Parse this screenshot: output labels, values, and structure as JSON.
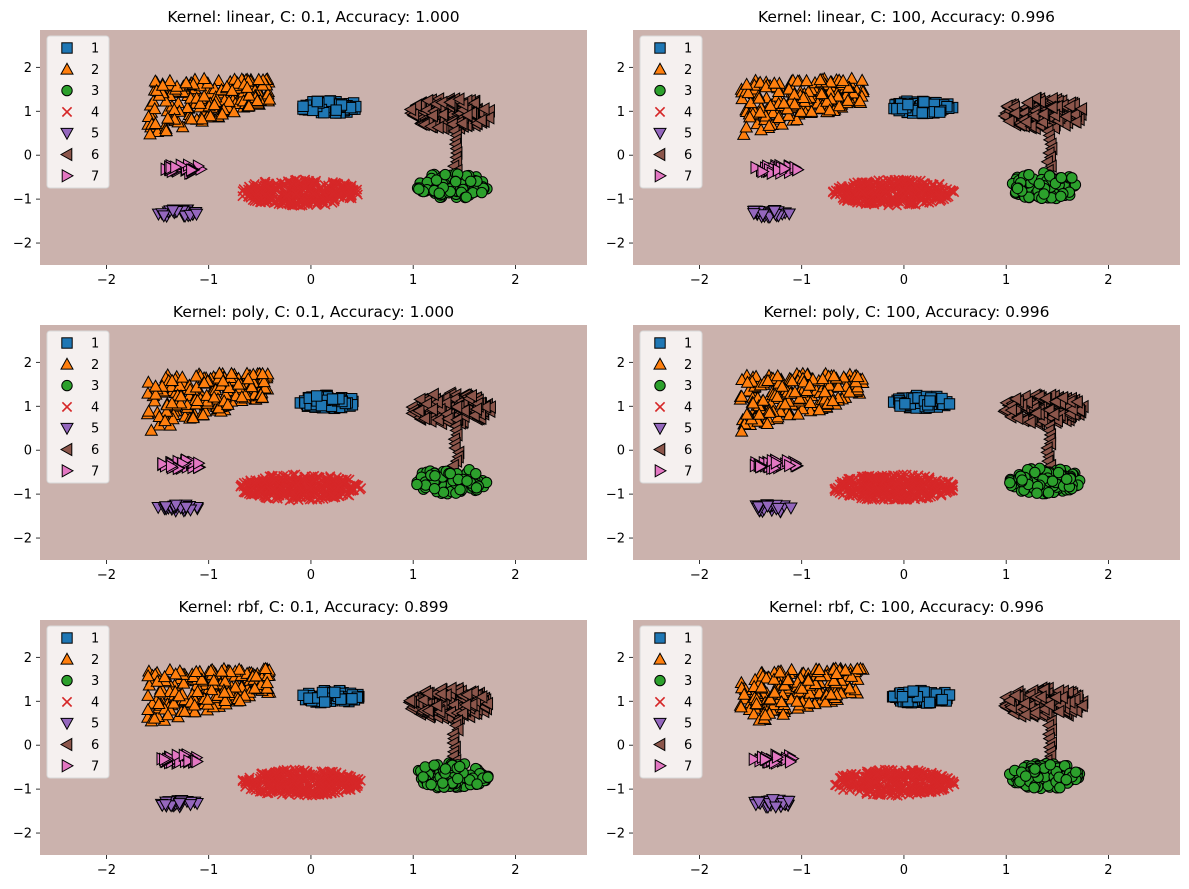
{
  "figure": {
    "background": "#ffffff",
    "region_color": "#cbb2ad"
  },
  "legend": {
    "placement": "upper-left",
    "items": [
      {
        "label": "1",
        "marker": "square",
        "color": "#1f77b4"
      },
      {
        "label": "2",
        "marker": "triangle-up",
        "color": "#ff7f0e"
      },
      {
        "label": "3",
        "marker": "circle",
        "color": "#2ca02c"
      },
      {
        "label": "4",
        "marker": "x",
        "color": "#d62728"
      },
      {
        "label": "5",
        "marker": "triangle-down",
        "color": "#9467bd"
      },
      {
        "label": "6",
        "marker": "triangle-left",
        "color": "#8c564b"
      },
      {
        "label": "7",
        "marker": "triangle-right",
        "color": "#e377c2"
      }
    ]
  },
  "chart_data": [
    {
      "type": "scatter",
      "title": "Kernel:  linear, C: 0.1, Accuracy: 1.000",
      "xlim": [
        -2.65,
        2.7
      ],
      "ylim": [
        -2.5,
        2.85
      ],
      "xticks": [
        -2,
        -1,
        0,
        1,
        2
      ],
      "yticks": [
        -2,
        -1,
        0,
        1,
        2
      ],
      "clusters": [
        {
          "class": "1",
          "shape": "ellipse",
          "center": [
            0.18,
            1.1
          ],
          "radii": [
            0.3,
            0.15
          ],
          "n": 70
        },
        {
          "class": "2",
          "shape": "crescent",
          "x_range": [
            -1.6,
            -0.4
          ],
          "y_range": [
            0.35,
            1.75
          ],
          "n": 200
        },
        {
          "class": "3",
          "shape": "ellipse",
          "center": [
            1.38,
            -0.7
          ],
          "radii": [
            0.36,
            0.3
          ],
          "n": 110
        },
        {
          "class": "4",
          "shape": "ellipse",
          "center": [
            -0.1,
            -0.85
          ],
          "radii": [
            0.6,
            0.3
          ],
          "n": 320
        },
        {
          "class": "5",
          "shape": "ellipse",
          "center": [
            -1.3,
            -1.32
          ],
          "radii": [
            0.2,
            0.09
          ],
          "n": 28
        },
        {
          "class": "6",
          "shape": "ellipse",
          "center": [
            1.36,
            0.95
          ],
          "radii": [
            0.4,
            0.35
          ],
          "n": 160
        },
        {
          "class": "7",
          "shape": "ellipse",
          "center": [
            -1.25,
            -0.32
          ],
          "radii": [
            0.22,
            0.1
          ],
          "n": 30
        }
      ]
    },
    {
      "type": "scatter",
      "title": "Kernel:  linear, C: 100, Accuracy: 0.996",
      "xlim": [
        -2.65,
        2.7
      ],
      "ylim": [
        -2.5,
        2.85
      ],
      "xticks": [
        -2,
        -1,
        0,
        1,
        2
      ],
      "yticks": [
        -2,
        -1,
        0,
        1,
        2
      ],
      "clusters": [
        {
          "class": "1",
          "shape": "ellipse",
          "center": [
            0.18,
            1.1
          ],
          "radii": [
            0.3,
            0.15
          ],
          "n": 70
        },
        {
          "class": "2",
          "shape": "crescent",
          "x_range": [
            -1.6,
            -0.4
          ],
          "y_range": [
            0.35,
            1.75
          ],
          "n": 200
        },
        {
          "class": "3",
          "shape": "ellipse",
          "center": [
            1.38,
            -0.7
          ],
          "radii": [
            0.36,
            0.3
          ],
          "n": 110
        },
        {
          "class": "4",
          "shape": "ellipse",
          "center": [
            -0.1,
            -0.85
          ],
          "radii": [
            0.6,
            0.3
          ],
          "n": 320
        },
        {
          "class": "5",
          "shape": "ellipse",
          "center": [
            -1.3,
            -1.32
          ],
          "radii": [
            0.2,
            0.09
          ],
          "n": 28
        },
        {
          "class": "6",
          "shape": "ellipse",
          "center": [
            1.36,
            0.95
          ],
          "radii": [
            0.4,
            0.35
          ],
          "n": 160
        },
        {
          "class": "7",
          "shape": "ellipse",
          "center": [
            -1.25,
            -0.32
          ],
          "radii": [
            0.22,
            0.1
          ],
          "n": 30
        }
      ]
    },
    {
      "type": "scatter",
      "title": "Kernel:  poly, C: 0.1, Accuracy: 1.000",
      "xlim": [
        -2.65,
        2.7
      ],
      "ylim": [
        -2.5,
        2.85
      ],
      "xticks": [
        -2,
        -1,
        0,
        1,
        2
      ],
      "yticks": [
        -2,
        -1,
        0,
        1,
        2
      ],
      "clusters": [
        {
          "class": "1",
          "shape": "ellipse",
          "center": [
            0.18,
            1.1
          ],
          "radii": [
            0.3,
            0.15
          ],
          "n": 70
        },
        {
          "class": "2",
          "shape": "crescent",
          "x_range": [
            -1.6,
            -0.4
          ],
          "y_range": [
            0.35,
            1.75
          ],
          "n": 200
        },
        {
          "class": "3",
          "shape": "ellipse",
          "center": [
            1.38,
            -0.7
          ],
          "radii": [
            0.36,
            0.3
          ],
          "n": 110
        },
        {
          "class": "4",
          "shape": "ellipse",
          "center": [
            -0.1,
            -0.85
          ],
          "radii": [
            0.6,
            0.3
          ],
          "n": 320
        },
        {
          "class": "5",
          "shape": "ellipse",
          "center": [
            -1.3,
            -1.32
          ],
          "radii": [
            0.2,
            0.09
          ],
          "n": 28
        },
        {
          "class": "6",
          "shape": "ellipse",
          "center": [
            1.36,
            0.95
          ],
          "radii": [
            0.4,
            0.35
          ],
          "n": 160
        },
        {
          "class": "7",
          "shape": "ellipse",
          "center": [
            -1.25,
            -0.32
          ],
          "radii": [
            0.22,
            0.1
          ],
          "n": 30
        }
      ]
    },
    {
      "type": "scatter",
      "title": "Kernel:  poly, C: 100, Accuracy: 0.996",
      "xlim": [
        -2.65,
        2.7
      ],
      "ylim": [
        -2.5,
        2.85
      ],
      "xticks": [
        -2,
        -1,
        0,
        1,
        2
      ],
      "yticks": [
        -2,
        -1,
        0,
        1,
        2
      ],
      "clusters": [
        {
          "class": "1",
          "shape": "ellipse",
          "center": [
            0.18,
            1.1
          ],
          "radii": [
            0.3,
            0.15
          ],
          "n": 70
        },
        {
          "class": "2",
          "shape": "crescent",
          "x_range": [
            -1.6,
            -0.4
          ],
          "y_range": [
            0.35,
            1.75
          ],
          "n": 200
        },
        {
          "class": "3",
          "shape": "ellipse",
          "center": [
            1.38,
            -0.7
          ],
          "radii": [
            0.36,
            0.3
          ],
          "n": 110
        },
        {
          "class": "4",
          "shape": "ellipse",
          "center": [
            -0.1,
            -0.85
          ],
          "radii": [
            0.6,
            0.3
          ],
          "n": 320
        },
        {
          "class": "5",
          "shape": "ellipse",
          "center": [
            -1.3,
            -1.32
          ],
          "radii": [
            0.2,
            0.09
          ],
          "n": 28
        },
        {
          "class": "6",
          "shape": "ellipse",
          "center": [
            1.36,
            0.95
          ],
          "radii": [
            0.4,
            0.35
          ],
          "n": 160
        },
        {
          "class": "7",
          "shape": "ellipse",
          "center": [
            -1.25,
            -0.32
          ],
          "radii": [
            0.22,
            0.1
          ],
          "n": 30
        }
      ]
    },
    {
      "type": "scatter",
      "title": "Kernel:  rbf, C: 0.1, Accuracy: 0.899",
      "xlim": [
        -2.65,
        2.7
      ],
      "ylim": [
        -2.5,
        2.85
      ],
      "xticks": [
        -2,
        -1,
        0,
        1,
        2
      ],
      "yticks": [
        -2,
        -1,
        0,
        1,
        2
      ],
      "clusters": [
        {
          "class": "1",
          "shape": "ellipse",
          "center": [
            0.18,
            1.1
          ],
          "radii": [
            0.3,
            0.15
          ],
          "n": 70
        },
        {
          "class": "2",
          "shape": "crescent",
          "x_range": [
            -1.6,
            -0.4
          ],
          "y_range": [
            0.35,
            1.75
          ],
          "n": 200
        },
        {
          "class": "3",
          "shape": "ellipse",
          "center": [
            1.38,
            -0.7
          ],
          "radii": [
            0.36,
            0.3
          ],
          "n": 110
        },
        {
          "class": "4",
          "shape": "ellipse",
          "center": [
            -0.1,
            -0.85
          ],
          "radii": [
            0.6,
            0.3
          ],
          "n": 320
        },
        {
          "class": "5",
          "shape": "ellipse",
          "center": [
            -1.3,
            -1.32
          ],
          "radii": [
            0.2,
            0.09
          ],
          "n": 28
        },
        {
          "class": "6",
          "shape": "ellipse",
          "center": [
            1.36,
            0.95
          ],
          "radii": [
            0.4,
            0.35
          ],
          "n": 160
        },
        {
          "class": "7",
          "shape": "ellipse",
          "center": [
            -1.25,
            -0.32
          ],
          "radii": [
            0.22,
            0.1
          ],
          "n": 30
        }
      ]
    },
    {
      "type": "scatter",
      "title": "Kernel:  rbf, C: 100, Accuracy: 0.996",
      "xlim": [
        -2.65,
        2.7
      ],
      "ylim": [
        -2.5,
        2.85
      ],
      "xticks": [
        -2,
        -1,
        0,
        1,
        2
      ],
      "yticks": [
        -2,
        -1,
        0,
        1,
        2
      ],
      "clusters": [
        {
          "class": "1",
          "shape": "ellipse",
          "center": [
            0.18,
            1.1
          ],
          "radii": [
            0.3,
            0.15
          ],
          "n": 70
        },
        {
          "class": "2",
          "shape": "crescent",
          "x_range": [
            -1.6,
            -0.4
          ],
          "y_range": [
            0.35,
            1.75
          ],
          "n": 200
        },
        {
          "class": "3",
          "shape": "ellipse",
          "center": [
            1.38,
            -0.7
          ],
          "radii": [
            0.36,
            0.3
          ],
          "n": 110
        },
        {
          "class": "4",
          "shape": "ellipse",
          "center": [
            -0.1,
            -0.85
          ],
          "radii": [
            0.6,
            0.3
          ],
          "n": 320
        },
        {
          "class": "5",
          "shape": "ellipse",
          "center": [
            -1.3,
            -1.32
          ],
          "radii": [
            0.2,
            0.09
          ],
          "n": 28
        },
        {
          "class": "6",
          "shape": "ellipse",
          "center": [
            1.36,
            0.95
          ],
          "radii": [
            0.4,
            0.35
          ],
          "n": 160
        },
        {
          "class": "7",
          "shape": "ellipse",
          "center": [
            -1.25,
            -0.32
          ],
          "radii": [
            0.22,
            0.1
          ],
          "n": 30
        }
      ]
    }
  ]
}
